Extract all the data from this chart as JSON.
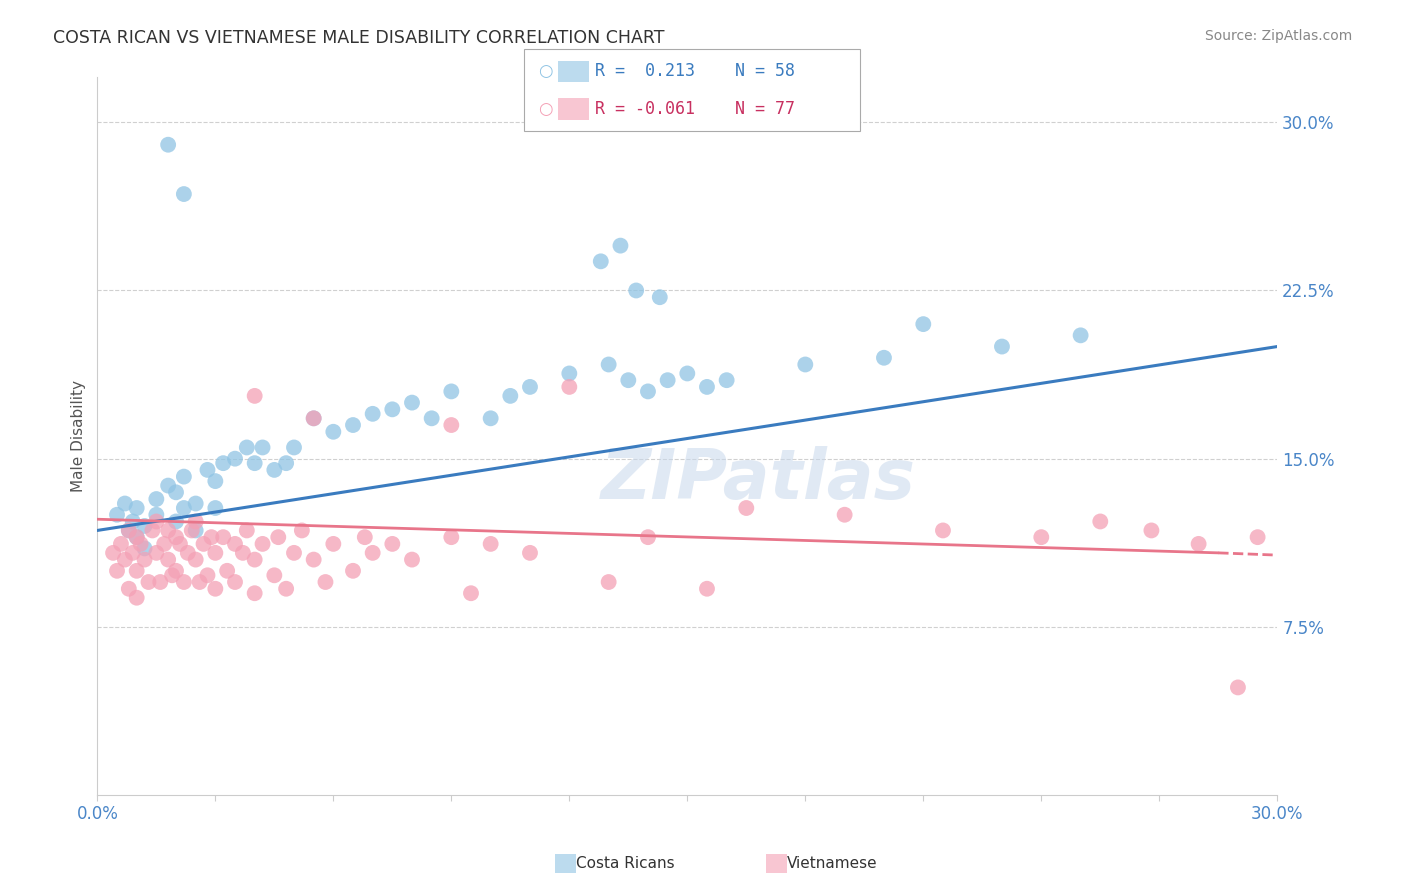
{
  "title": "COSTA RICAN VS VIETNAMESE MALE DISABILITY CORRELATION CHART",
  "source": "Source: ZipAtlas.com",
  "ylabel": "Male Disability",
  "xlim": [
    0.0,
    0.3
  ],
  "ylim": [
    0.0,
    0.32
  ],
  "yticks": [
    0.075,
    0.15,
    0.225,
    0.3
  ],
  "ytick_labels": [
    "7.5%",
    "15.0%",
    "22.5%",
    "30.0%"
  ],
  "xtick_positions": [
    0.0,
    0.03,
    0.06,
    0.09,
    0.12,
    0.15,
    0.18,
    0.21,
    0.24,
    0.27,
    0.3
  ],
  "legend_r_costa": "0.213",
  "legend_n_costa": "58",
  "legend_r_viet": "-0.061",
  "legend_n_viet": "77",
  "costa_color": "#90c4e4",
  "viet_color": "#f4a0b5",
  "trend_blue": "#3a7bbf",
  "trend_pink": "#e8758a",
  "background_color": "#ffffff",
  "grid_color": "#d0d0d0",
  "title_color": "#333333",
  "source_color": "#888888",
  "right_tick_color": "#4a86c8",
  "legend_text_blue": "#3a7bbf",
  "legend_text_pink": "#c83060",
  "bottom_label_costa": "Costa Ricans",
  "bottom_label_viet": "Vietnamese",
  "blue_trend": [
    0.0,
    0.118,
    0.3,
    0.2
  ],
  "pink_trend_solid": [
    0.0,
    0.123,
    0.285,
    0.108
  ],
  "pink_trend_dash": [
    0.285,
    0.108,
    0.3,
    0.107
  ],
  "cr_x": [
    0.005,
    0.007,
    0.008,
    0.009,
    0.01,
    0.01,
    0.012,
    0.012,
    0.015,
    0.015,
    0.018,
    0.02,
    0.02,
    0.022,
    0.022,
    0.025,
    0.025,
    0.028,
    0.03,
    0.03,
    0.032,
    0.035,
    0.038,
    0.04,
    0.042,
    0.045,
    0.048,
    0.05,
    0.055,
    0.06,
    0.065,
    0.07,
    0.075,
    0.08,
    0.085,
    0.09,
    0.1,
    0.105,
    0.11,
    0.12,
    0.13,
    0.135,
    0.14,
    0.145,
    0.15,
    0.155,
    0.16,
    0.18,
    0.2,
    0.21,
    0.23,
    0.25,
    0.018,
    0.022,
    0.128,
    0.133,
    0.137,
    0.143
  ],
  "cr_y": [
    0.125,
    0.13,
    0.118,
    0.122,
    0.115,
    0.128,
    0.12,
    0.11,
    0.132,
    0.125,
    0.138,
    0.135,
    0.122,
    0.142,
    0.128,
    0.13,
    0.118,
    0.145,
    0.14,
    0.128,
    0.148,
    0.15,
    0.155,
    0.148,
    0.155,
    0.145,
    0.148,
    0.155,
    0.168,
    0.162,
    0.165,
    0.17,
    0.172,
    0.175,
    0.168,
    0.18,
    0.168,
    0.178,
    0.182,
    0.188,
    0.192,
    0.185,
    0.18,
    0.185,
    0.188,
    0.182,
    0.185,
    0.192,
    0.195,
    0.21,
    0.2,
    0.205,
    0.29,
    0.268,
    0.238,
    0.245,
    0.225,
    0.222
  ],
  "vn_x": [
    0.004,
    0.005,
    0.006,
    0.007,
    0.008,
    0.008,
    0.009,
    0.01,
    0.01,
    0.01,
    0.011,
    0.012,
    0.013,
    0.014,
    0.015,
    0.015,
    0.016,
    0.017,
    0.018,
    0.018,
    0.019,
    0.02,
    0.02,
    0.021,
    0.022,
    0.023,
    0.024,
    0.025,
    0.025,
    0.026,
    0.027,
    0.028,
    0.029,
    0.03,
    0.03,
    0.032,
    0.033,
    0.035,
    0.035,
    0.037,
    0.038,
    0.04,
    0.04,
    0.042,
    0.045,
    0.046,
    0.048,
    0.05,
    0.052,
    0.055,
    0.058,
    0.06,
    0.065,
    0.068,
    0.07,
    0.075,
    0.08,
    0.09,
    0.095,
    0.1,
    0.11,
    0.13,
    0.14,
    0.155,
    0.165,
    0.19,
    0.215,
    0.24,
    0.255,
    0.268,
    0.28,
    0.29,
    0.295,
    0.04,
    0.055,
    0.09,
    0.12
  ],
  "vn_y": [
    0.108,
    0.1,
    0.112,
    0.105,
    0.118,
    0.092,
    0.108,
    0.115,
    0.1,
    0.088,
    0.112,
    0.105,
    0.095,
    0.118,
    0.122,
    0.108,
    0.095,
    0.112,
    0.105,
    0.118,
    0.098,
    0.115,
    0.1,
    0.112,
    0.095,
    0.108,
    0.118,
    0.122,
    0.105,
    0.095,
    0.112,
    0.098,
    0.115,
    0.108,
    0.092,
    0.115,
    0.1,
    0.112,
    0.095,
    0.108,
    0.118,
    0.105,
    0.09,
    0.112,
    0.098,
    0.115,
    0.092,
    0.108,
    0.118,
    0.105,
    0.095,
    0.112,
    0.1,
    0.115,
    0.108,
    0.112,
    0.105,
    0.115,
    0.09,
    0.112,
    0.108,
    0.095,
    0.115,
    0.092,
    0.128,
    0.125,
    0.118,
    0.115,
    0.122,
    0.118,
    0.112,
    0.048,
    0.115,
    0.178,
    0.168,
    0.165,
    0.182
  ]
}
